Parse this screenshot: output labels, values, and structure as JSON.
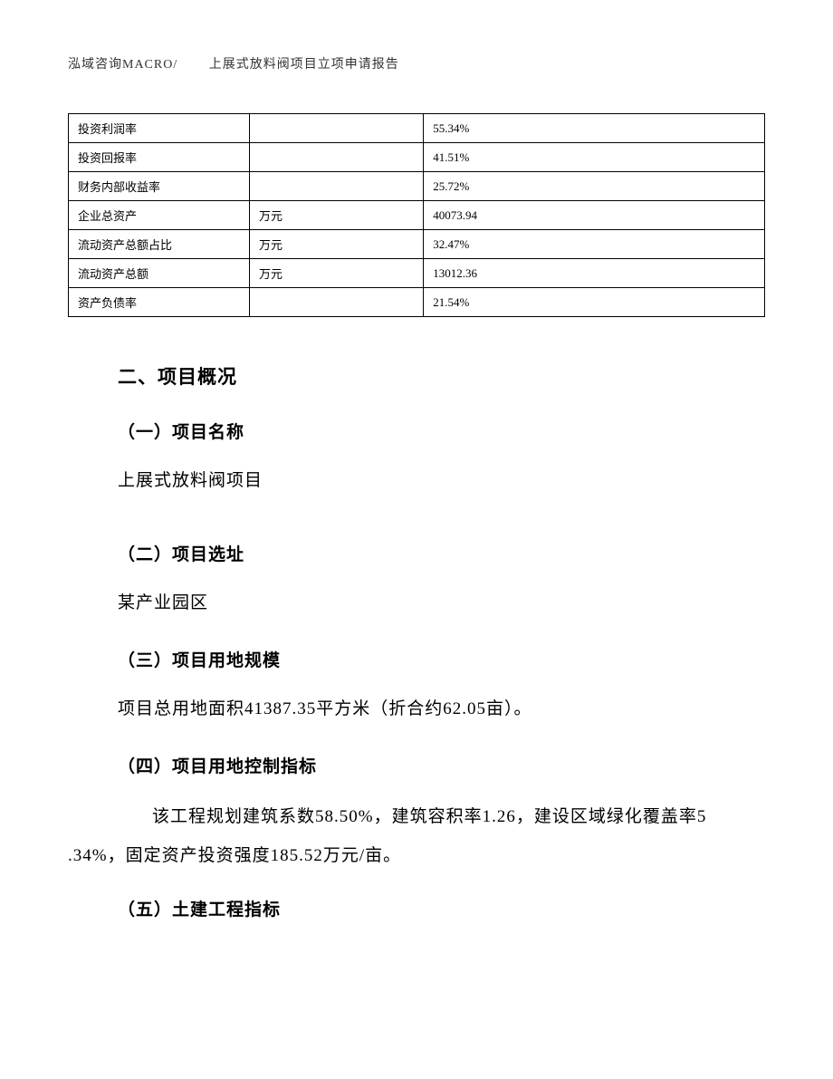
{
  "header": {
    "company": "泓域咨询MACRO/",
    "doc_title": "上展式放料阀项目立项申请报告"
  },
  "table": {
    "rows": [
      {
        "label": "投资利润率",
        "unit": "",
        "value": "55.34%"
      },
      {
        "label": "投资回报率",
        "unit": "",
        "value": "41.51%"
      },
      {
        "label": "财务内部收益率",
        "unit": "",
        "value": "25.72%"
      },
      {
        "label": "企业总资产",
        "unit": "万元",
        "value": "40073.94"
      },
      {
        "label": "流动资产总额占比",
        "unit": "万元",
        "value": "32.47%"
      },
      {
        "label": "流动资产总额",
        "unit": "万元",
        "value": "13012.36"
      },
      {
        "label": "资产负债率",
        "unit": "",
        "value": "21.54%"
      }
    ]
  },
  "sections": {
    "main_title": "二、项目概况",
    "sub1_title": "（一）项目名称",
    "sub1_text": "上展式放料阀项目",
    "sub2_title": "（二）项目选址",
    "sub2_text": "某产业园区",
    "sub3_title": "（三）项目用地规模",
    "sub3_text": "项目总用地面积41387.35平方米（折合约62.05亩）。",
    "sub4_title": "（四）项目用地控制指标",
    "sub4_text_line1": "该工程规划建筑系数58.50%，建筑容积率1.26，建设区域绿化覆盖率5",
    "sub4_text_line2": ".34%，固定资产投资强度185.52万元/亩。",
    "sub5_title": "（五）土建工程指标"
  }
}
